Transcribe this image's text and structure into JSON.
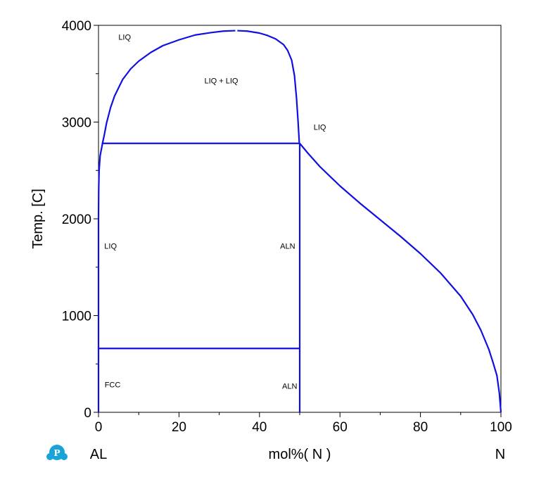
{
  "chart_data": {
    "type": "line",
    "title": "",
    "xlabel": "mol%( N )",
    "ylabel": "Temp. [C]",
    "x_left_component": "AL",
    "x_right_component": "N",
    "xlim": [
      0,
      100
    ],
    "ylim": [
      0,
      4000
    ],
    "x_major_ticks": [
      0,
      20,
      40,
      60,
      80,
      100
    ],
    "x_minor_ticks": [
      10,
      30,
      50,
      70,
      90
    ],
    "y_major_ticks": [
      0,
      1000,
      2000,
      3000,
      4000
    ],
    "y_minor_ticks": [
      500,
      1500,
      2500,
      3500
    ],
    "x_tick_labels": [
      "0",
      "20",
      "40",
      "60",
      "80",
      "100"
    ],
    "y_tick_labels": [
      "0",
      "1000",
      "2000",
      "3000",
      "4000"
    ],
    "grid": false,
    "line_color": "#1010e0",
    "series": [
      {
        "id": "miscibility-gap-left",
        "points": [
          [
            0,
            2000
          ],
          [
            0.05,
            2300
          ],
          [
            0.15,
            2500
          ],
          [
            0.4,
            2650
          ],
          [
            1,
            2780
          ],
          [
            1.5,
            2880
          ],
          [
            2,
            2990
          ],
          [
            3,
            3150
          ],
          [
            4,
            3270
          ],
          [
            6,
            3440
          ],
          [
            8,
            3550
          ],
          [
            10,
            3630
          ],
          [
            13,
            3720
          ],
          [
            16,
            3790
          ],
          [
            20,
            3850
          ],
          [
            24,
            3900
          ],
          [
            28,
            3925
          ],
          [
            31,
            3940
          ],
          [
            34,
            3945
          ]
        ]
      },
      {
        "id": "miscibility-gap-right",
        "points": [
          [
            34.5,
            3945
          ],
          [
            37,
            3940
          ],
          [
            40,
            3920
          ],
          [
            42,
            3895
          ],
          [
            44,
            3860
          ],
          [
            46,
            3800
          ],
          [
            47,
            3740
          ],
          [
            48,
            3640
          ],
          [
            48.7,
            3480
          ],
          [
            49.2,
            3250
          ],
          [
            49.6,
            3000
          ],
          [
            49.9,
            2780
          ]
        ]
      },
      {
        "id": "liquidus-left-edge",
        "points": [
          [
            0,
            0
          ],
          [
            0,
            1000
          ],
          [
            0,
            2000
          ]
        ]
      },
      {
        "id": "monotectic-line",
        "points": [
          [
            0.8,
            2780
          ],
          [
            50,
            2780
          ]
        ]
      },
      {
        "id": "eutectic-line",
        "points": [
          [
            0,
            660
          ],
          [
            50,
            660
          ]
        ]
      },
      {
        "id": "aln-line",
        "points": [
          [
            50,
            0
          ],
          [
            50,
            2780
          ]
        ]
      },
      {
        "id": "liquidus-right",
        "points": [
          [
            50,
            2780
          ],
          [
            52,
            2680
          ],
          [
            55,
            2540
          ],
          [
            60,
            2340
          ],
          [
            65,
            2160
          ],
          [
            70,
            1990
          ],
          [
            75,
            1820
          ],
          [
            80,
            1640
          ],
          [
            85,
            1440
          ],
          [
            90,
            1200
          ],
          [
            93,
            1010
          ],
          [
            95,
            850
          ],
          [
            97,
            650
          ],
          [
            98,
            520
          ],
          [
            99,
            380
          ],
          [
            99.6,
            200
          ],
          [
            100,
            0
          ]
        ]
      }
    ],
    "annotations": [
      {
        "text": "LIQ",
        "x": 6.5,
        "y": 3850
      },
      {
        "text": "LIQ + LIQ",
        "x": 30.5,
        "y": 3400
      },
      {
        "text": "LIQ",
        "x": 55,
        "y": 2920
      },
      {
        "text": "LIQ",
        "x": 3,
        "y": 1690
      },
      {
        "text": "ALN",
        "x": 47,
        "y": 1690
      },
      {
        "text": "FCC",
        "x": 3.5,
        "y": 260
      },
      {
        "text": "ALN",
        "x": 47.5,
        "y": 245
      }
    ]
  },
  "logo": {
    "letter": "P",
    "color": "#1aa3d8"
  }
}
